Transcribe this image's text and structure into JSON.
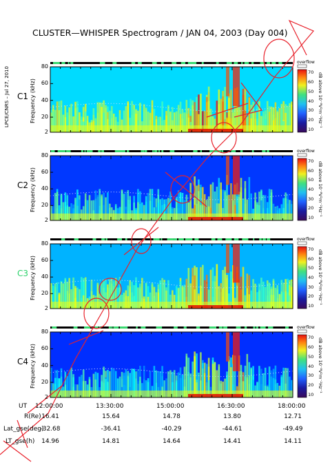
{
  "title": "CLUSTER—WHISPER Spectrogram / JAN 04, 2003 (Day 004)",
  "side_note": "LPCE/CNRS – Jul 27, 2010",
  "colors": {
    "C1": "#000000",
    "C2": "#000000",
    "C3": "#2bd16a",
    "C4": "#000000",
    "annotation": "#e8202a"
  },
  "chart_data": {
    "type": "heatmap",
    "title": "CLUSTER—WHISPER Spectrogram / JAN 04, 2003 (Day 004)",
    "ylabel": "Frequency (kHz)",
    "yticks": [
      "2",
      "20",
      "40",
      "60",
      "80"
    ],
    "ylim": [
      2,
      80
    ],
    "xlabel": "UT",
    "xticks": [
      "12:00:00",
      "13:30:00",
      "15:00:00",
      "16:30:00",
      "18:00:00"
    ],
    "colorbar": {
      "title": "overflow",
      "label": "dB above 10⁻⁸V²m⁻²Hz⁻¹",
      "ticks": [
        "10",
        "20",
        "30",
        "40",
        "50",
        "60",
        "70"
      ],
      "range": [
        10,
        70
      ]
    },
    "series": [
      {
        "name": "C1"
      },
      {
        "name": "C2"
      },
      {
        "name": "C3"
      },
      {
        "name": "C4"
      }
    ]
  },
  "ephemeris": {
    "rows": [
      {
        "label": "R(Re)",
        "values": [
          "16.41",
          "15.64",
          "14.78",
          "13.80",
          "12.71"
        ]
      },
      {
        "label": "Lat_gse(deg)",
        "values": [
          "-32.68",
          "-36.41",
          "-40.29",
          "-44.61",
          "-49.49"
        ]
      },
      {
        "label": "LT_gse(h)",
        "values": [
          "14.96",
          "14.81",
          "14.64",
          "14.41",
          "14.11"
        ]
      }
    ]
  }
}
